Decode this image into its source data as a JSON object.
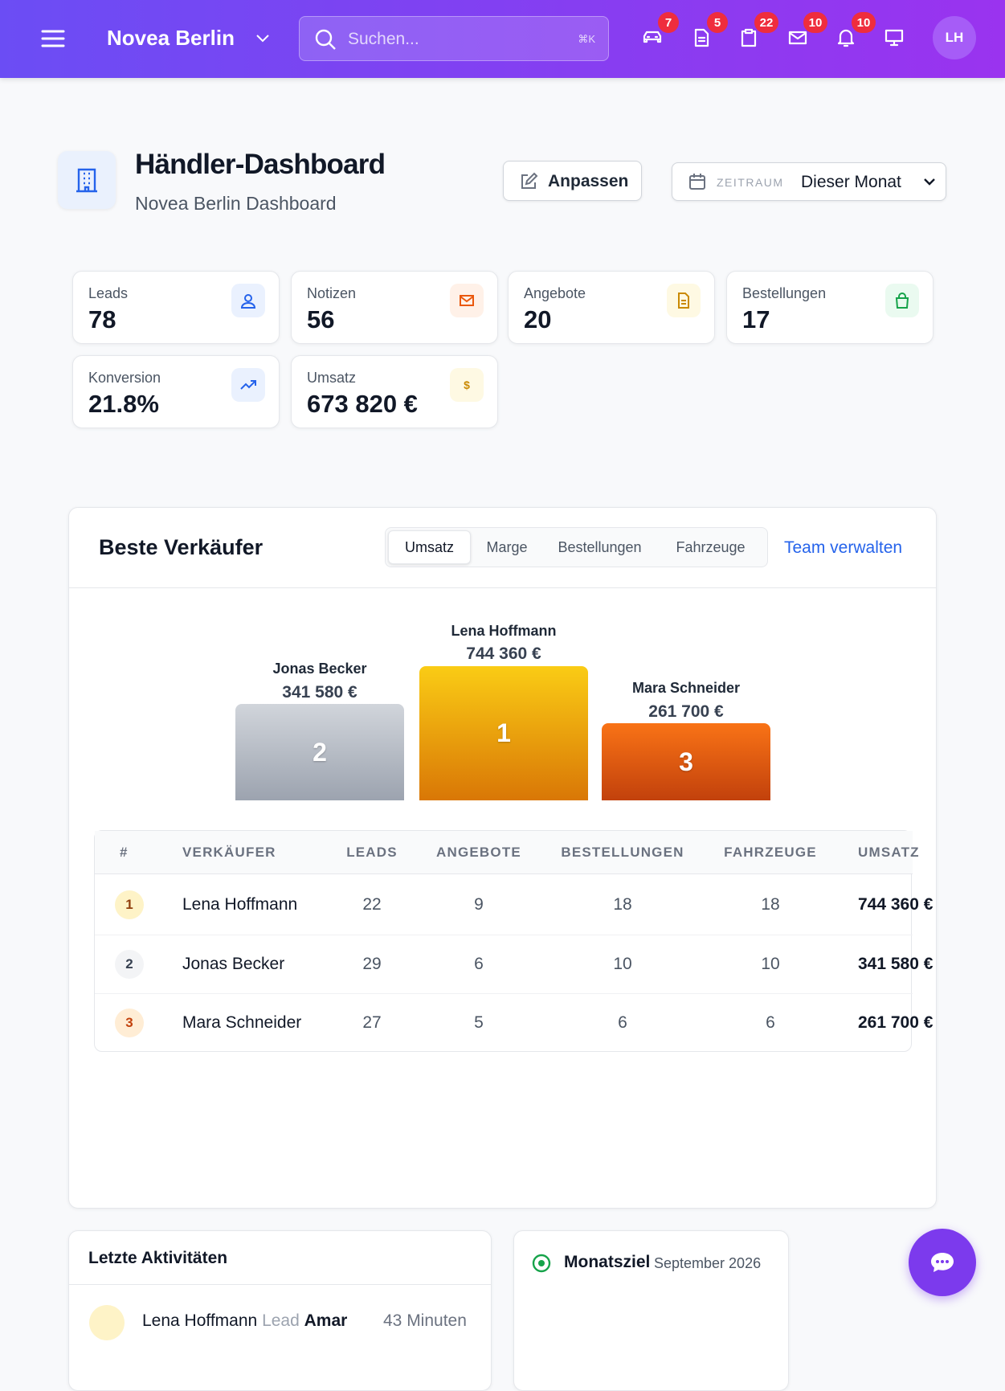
{
  "header": {
    "brand": "Novea Berlin",
    "search_placeholder": "Suchen...",
    "shortcut": "⌘K",
    "badges": [
      "7",
      "5",
      "22",
      "10",
      "10"
    ],
    "avatar": "LH"
  },
  "page": {
    "title": "Händler-Dashboard",
    "subtitle": "Novea Berlin Dashboard",
    "customize": "Anpassen",
    "period_label": "ZEITRAUM",
    "period_value": "Dieser Monat"
  },
  "kpis": [
    {
      "label": "Leads",
      "value": "78"
    },
    {
      "label": "Notizen",
      "value": "56"
    },
    {
      "label": "Angebote",
      "value": "20"
    },
    {
      "label": "Bestellungen",
      "value": "17"
    },
    {
      "label": "Konversion",
      "value": "21.8%"
    },
    {
      "label": "Umsatz",
      "value": "673 820 €",
      "icon": "$"
    }
  ],
  "top_sellers": {
    "title": "Beste Verkäufer",
    "tabs": [
      "Umsatz",
      "Marge",
      "Bestellungen",
      "Fahrzeuge"
    ],
    "link": "Team verwalten",
    "podium": [
      {
        "rank": 2,
        "name": "Jonas Becker",
        "amount": "341 580 €"
      },
      {
        "rank": 1,
        "name": "Lena Hoffmann",
        "amount": "744 360 €"
      },
      {
        "rank": 3,
        "name": "Mara Schneider",
        "amount": "261 700 €"
      }
    ],
    "table": {
      "columns": [
        "#",
        "VERKÄUFER",
        "LEADS",
        "ANGEBOTE",
        "BESTELLUNGEN",
        "FAHRZEUGE",
        "UMSATZ"
      ],
      "rows": [
        [
          1,
          "Lena Hoffmann",
          22,
          9,
          18,
          18,
          "744 360 €"
        ],
        [
          2,
          "Jonas Becker",
          29,
          6,
          10,
          10,
          "341 580 €"
        ],
        [
          3,
          "Mara Schneider",
          27,
          5,
          6,
          6,
          "261 700 €"
        ]
      ]
    }
  },
  "activities": {
    "title": "Letzte Aktivitäten",
    "items": [
      {
        "name": "Lena Hoffmann",
        "type": "Lead",
        "subject": "Amar",
        "time": "43 Minuten"
      }
    ]
  },
  "goal": {
    "title": "Monatsziel",
    "period": "September 2026"
  }
}
